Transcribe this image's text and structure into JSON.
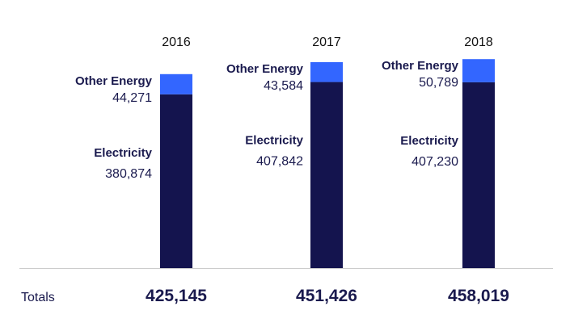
{
  "chart_data": {
    "type": "bar",
    "stacked": true,
    "categories": [
      "2016",
      "2017",
      "2018"
    ],
    "series": [
      {
        "name": "Electricity",
        "values": [
          380874,
          407842,
          407230
        ],
        "value_labels": [
          "380,874",
          "407,842",
          "407,230"
        ]
      },
      {
        "name": "Other Energy",
        "values": [
          44271,
          43584,
          50789
        ],
        "value_labels": [
          "44,271",
          "43,584",
          "50,789"
        ]
      }
    ],
    "totals_label": "Totals",
    "totals": [
      425145,
      451426,
      458019
    ],
    "totals_labels": [
      "425,145",
      "451,426",
      "458,019"
    ],
    "ylim": [
      0,
      500000
    ],
    "grid": false,
    "legend": "none",
    "colors": {
      "Electricity": "#14144e",
      "Other Energy": "#3366ff",
      "baseline": "#cccccc"
    }
  }
}
